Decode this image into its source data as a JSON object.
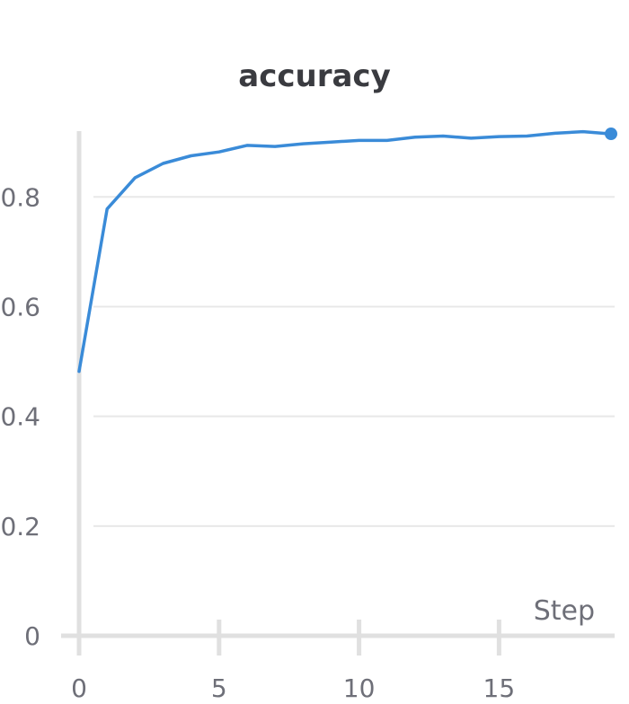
{
  "chart_data": {
    "type": "line",
    "title": "accuracy",
    "xlabel": "Step",
    "ylabel": "",
    "xlim": [
      0,
      19
    ],
    "ylim": [
      0,
      0.92
    ],
    "x_ticks": [
      0,
      5,
      10,
      15
    ],
    "y_ticks": [
      0,
      0.2,
      0.4,
      0.6,
      0.8
    ],
    "x_tick_labels": [
      "0",
      "5",
      "10",
      "15"
    ],
    "y_tick_labels": [
      "0",
      "0.2",
      "0.4",
      "0.6",
      "0.8"
    ],
    "grid": true,
    "legend": "none",
    "series": [
      {
        "color": "#3a8bd8",
        "x": [
          0,
          1,
          2,
          3,
          4,
          5,
          6,
          7,
          8,
          9,
          10,
          11,
          12,
          13,
          14,
          15,
          16,
          17,
          18,
          19
        ],
        "values": [
          0.482,
          0.778,
          0.835,
          0.861,
          0.875,
          0.882,
          0.894,
          0.892,
          0.897,
          0.9,
          0.903,
          0.903,
          0.909,
          0.911,
          0.907,
          0.91,
          0.911,
          0.916,
          0.919,
          0.915
        ],
        "last_point_marker": true
      }
    ]
  }
}
